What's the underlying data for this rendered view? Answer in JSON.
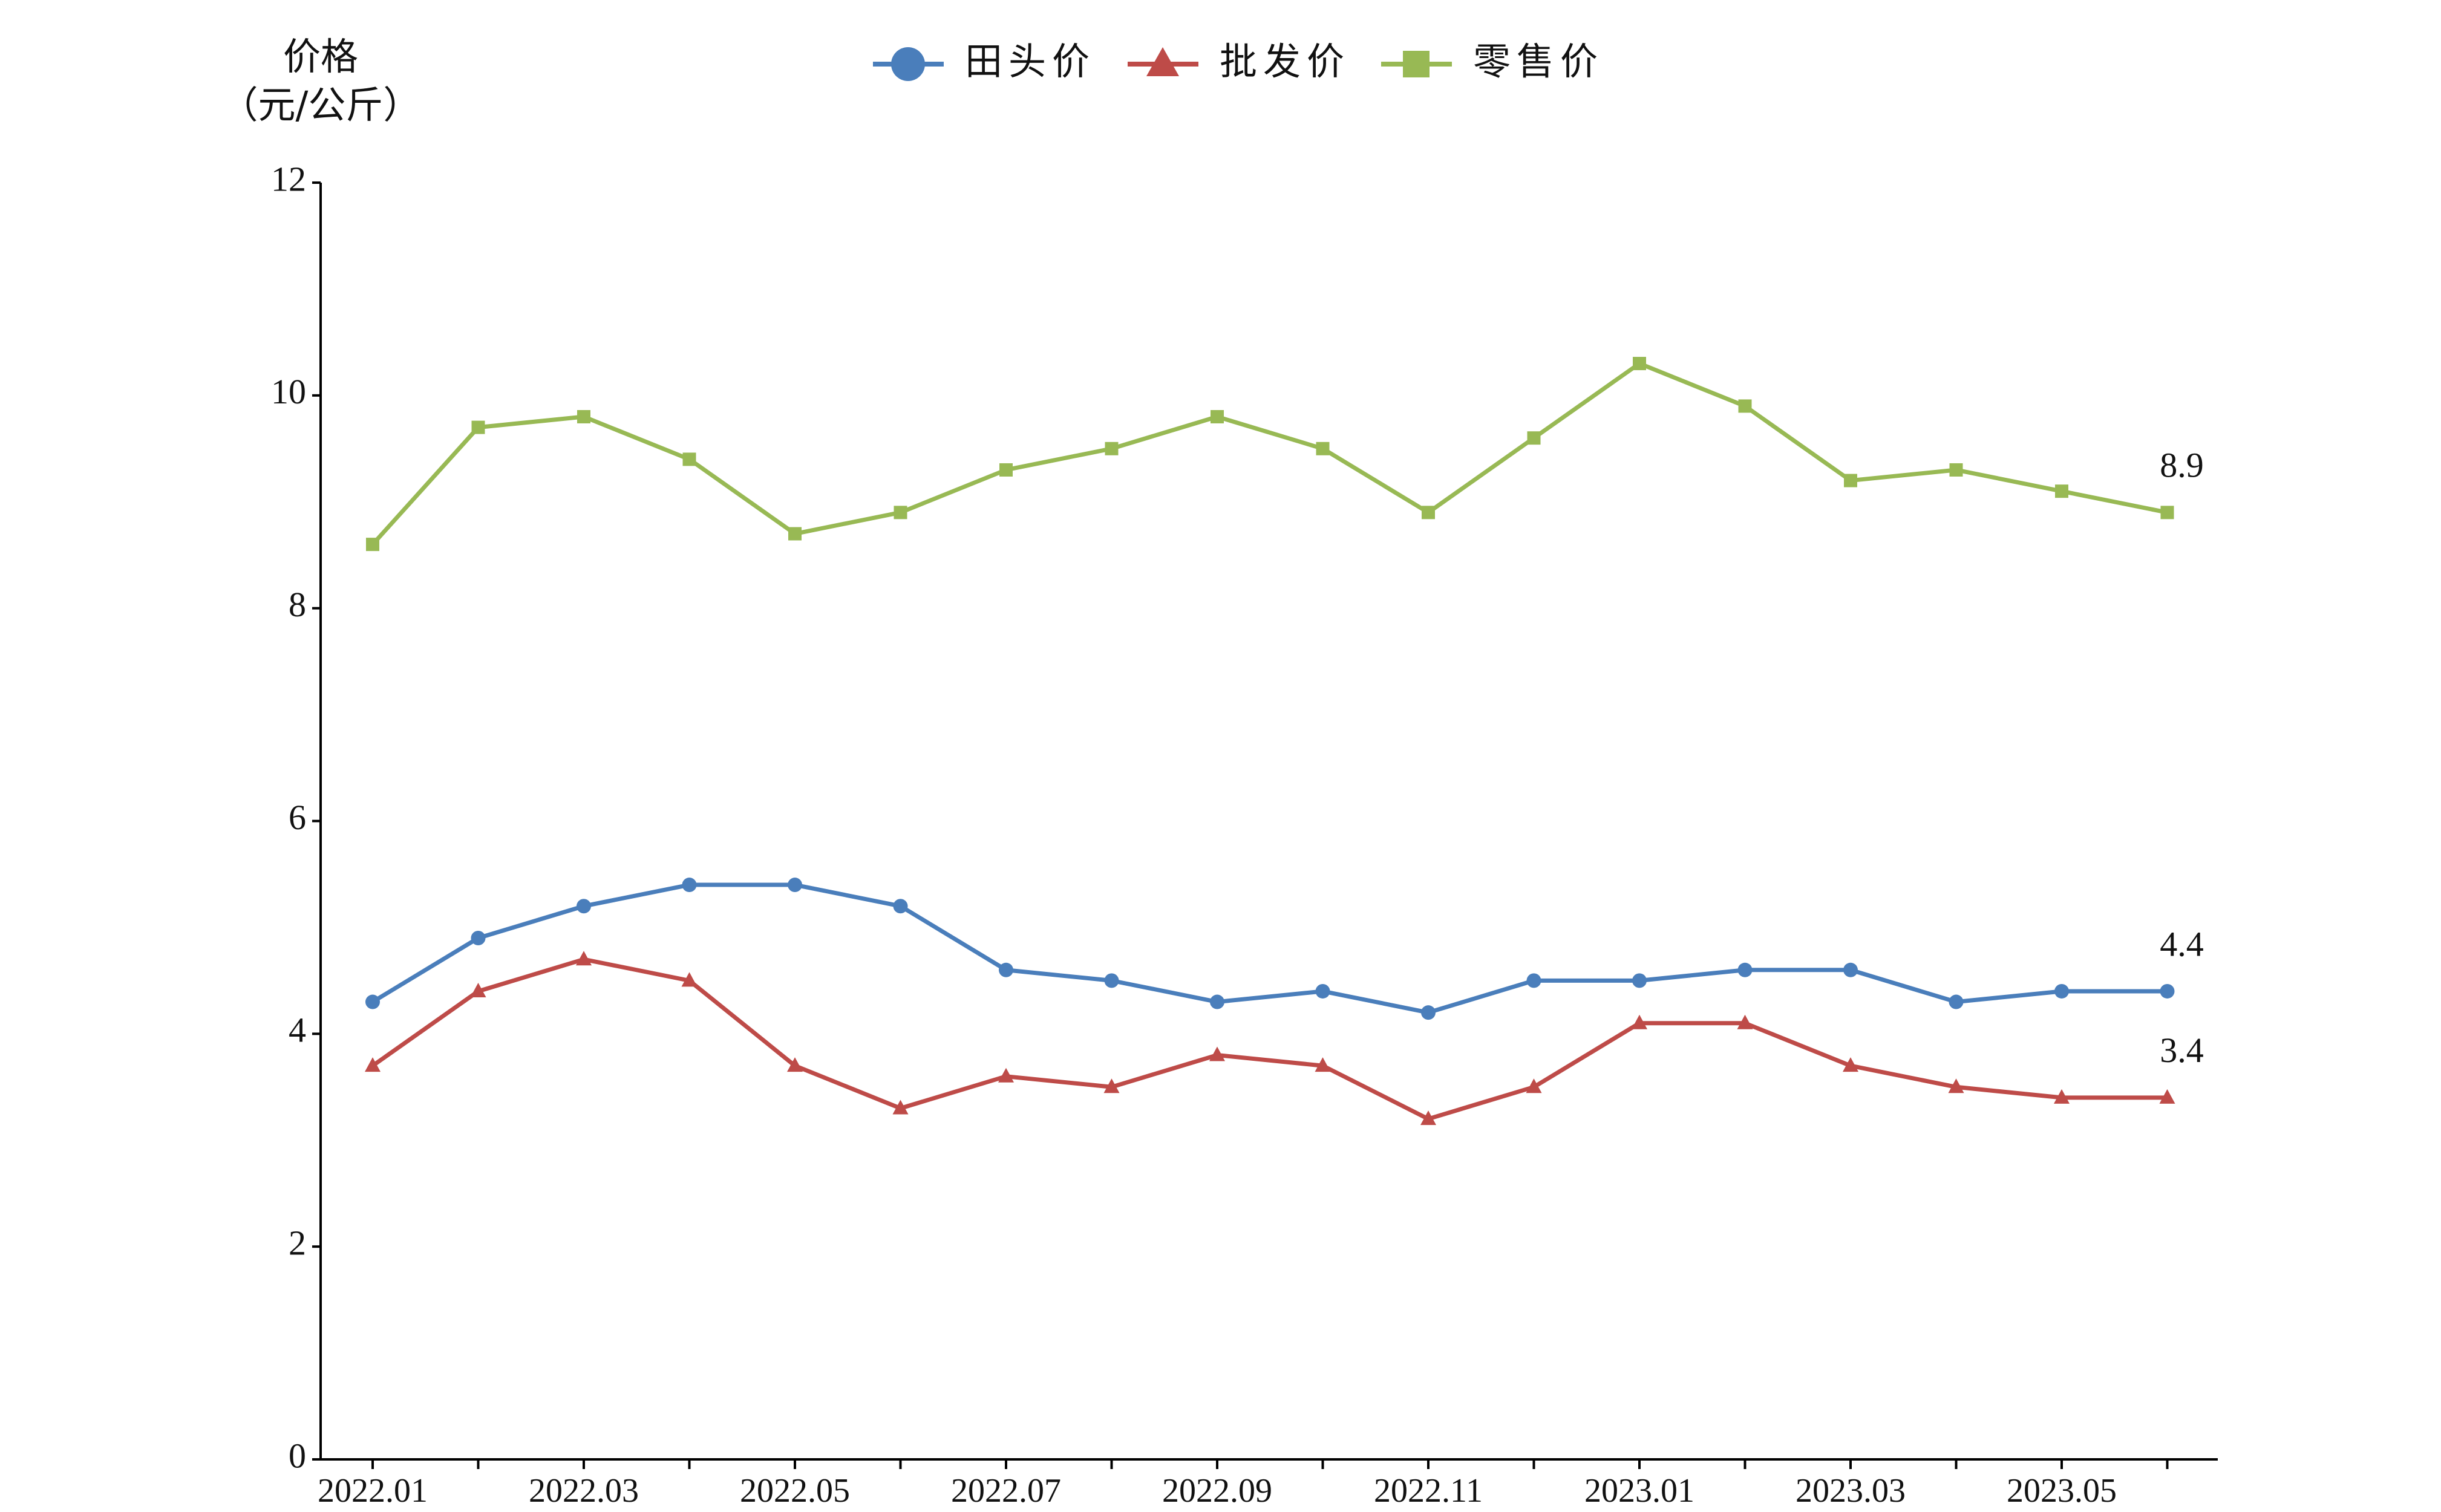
{
  "chart_data": {
    "type": "line",
    "ylabel": "价格",
    "ylabel_unit": "（元/公斤）",
    "categories": [
      "2022.01",
      null,
      "2022.03",
      null,
      "2022.05",
      null,
      "2022.07",
      null,
      "2022.09",
      null,
      "2022.11",
      null,
      "2023.01",
      null,
      "2023.03",
      null,
      "2023.05",
      null
    ],
    "series": [
      {
        "name": "田头价",
        "color": "#4a7ebb",
        "marker": "circle",
        "values": [
          4.3,
          4.9,
          5.2,
          5.4,
          5.4,
          5.2,
          4.6,
          4.5,
          4.3,
          4.4,
          4.2,
          4.5,
          4.5,
          4.6,
          4.6,
          4.3,
          4.4,
          4.4
        ]
      },
      {
        "name": "批发价",
        "color": "#be4b48",
        "marker": "triangle",
        "values": [
          3.7,
          4.4,
          4.7,
          4.5,
          3.7,
          3.3,
          3.6,
          3.5,
          3.8,
          3.7,
          3.2,
          3.5,
          4.1,
          4.1,
          3.7,
          3.5,
          3.4,
          3.4
        ]
      },
      {
        "name": "零售价",
        "color": "#98b954",
        "marker": "square",
        "values": [
          8.6,
          9.7,
          9.8,
          9.4,
          8.7,
          8.9,
          9.3,
          9.5,
          9.8,
          9.5,
          8.9,
          9.6,
          10.3,
          9.9,
          9.2,
          9.3,
          9.1,
          8.9
        ]
      }
    ],
    "ylim": [
      0,
      12
    ],
    "yticks": [
      0,
      2,
      4,
      6,
      8,
      10,
      12
    ],
    "grid": false,
    "legend": "top"
  }
}
